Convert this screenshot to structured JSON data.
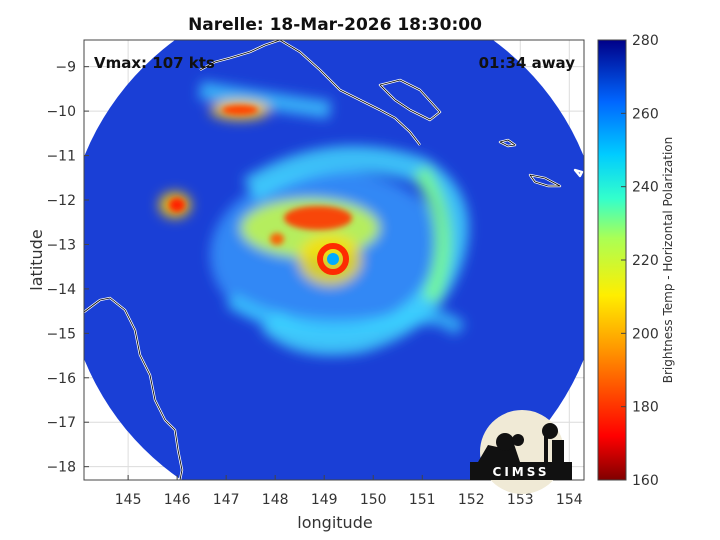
{
  "chart_data": {
    "type": "heatmap",
    "title": "Narelle: 18-Mar-2026 18:30:00",
    "xlabel": "longitude",
    "ylabel": "latitude",
    "xlim": [
      144.1,
      154.3
    ],
    "ylim": [
      -18.3,
      -8.4
    ],
    "x_ticks": [
      145,
      146,
      147,
      148,
      149,
      150,
      151,
      152,
      153,
      154
    ],
    "y_ticks": [
      -9,
      -10,
      -11,
      -12,
      -13,
      -14,
      -15,
      -16,
      -17,
      -18
    ],
    "grid": true,
    "annotations": {
      "vmax": "Vmax: 107 kts",
      "away": "01:34 away"
    },
    "colorbar": {
      "label": "Brightness Temp - Horizontal Polarization",
      "min": 160,
      "max": 280,
      "ticks": [
        280,
        260,
        240,
        220,
        200,
        180,
        160
      ],
      "colormap": "parula-jet"
    },
    "swath": {
      "center_lon": 149.2,
      "center_lat": -13.3,
      "radius_deg_lon": 5.5
    },
    "storm_center": {
      "lon": 149.2,
      "lat": -13.2,
      "eye_temp": 262,
      "eyewall_temp": 185
    },
    "features": [
      {
        "name": "central-dense-overcast",
        "lon": 148.7,
        "lat": -12.1,
        "temp": 190
      },
      {
        "name": "outer-rainband-east",
        "lon": 150.9,
        "lat": -12.8,
        "temp": 232
      },
      {
        "name": "convective-cell-west",
        "lon": 146.0,
        "lat": -12.0,
        "temp": 198
      },
      {
        "name": "convective-cell-north",
        "lon": 147.8,
        "lat": -9.9,
        "temp": 205
      }
    ],
    "background_ocean_temp": 270
  },
  "logo": {
    "text": "CIMSS"
  }
}
